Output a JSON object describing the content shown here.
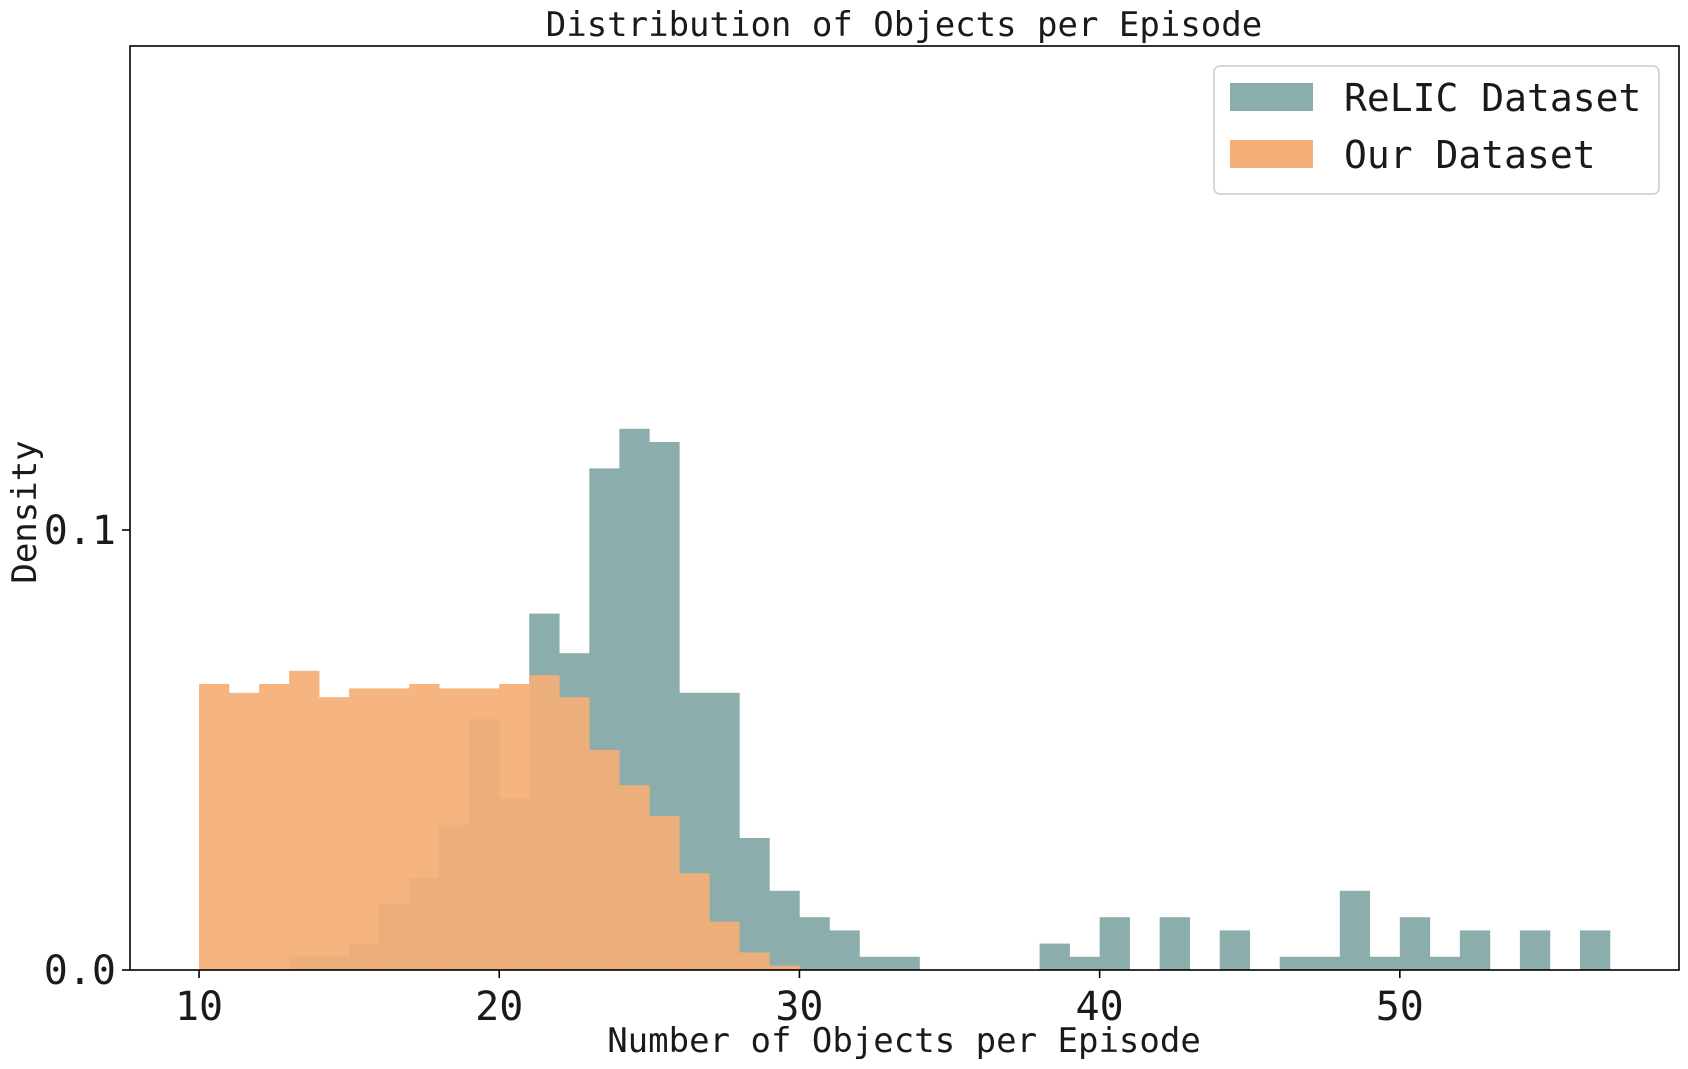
{
  "chart_data": {
    "type": "bar",
    "subtype": "overlapping-histogram",
    "title": "Distribution of Objects per Episode",
    "xlabel": "Number of Objects per Episode",
    "ylabel": "Density",
    "xlim": [
      7.7,
      59.3
    ],
    "ylim": [
      0,
      0.21
    ],
    "xticks": [
      10,
      20,
      30,
      40,
      50
    ],
    "yticks": [
      0.0,
      0.1
    ],
    "ytick_labels": [
      "0.0",
      "0.1"
    ],
    "bin_width": 1,
    "grid": false,
    "legend_position": "top-right",
    "series": [
      {
        "name": "ReLIC Dataset",
        "color": "#8badac",
        "bins": [
          [
            13,
            0.003
          ],
          [
            14,
            0.003
          ],
          [
            15,
            0.006
          ],
          [
            16,
            0.015
          ],
          [
            17,
            0.021
          ],
          [
            18,
            0.033
          ],
          [
            19,
            0.057
          ],
          [
            20,
            0.039
          ],
          [
            21,
            0.081
          ],
          [
            22,
            0.072
          ],
          [
            23,
            0.114
          ],
          [
            24,
            0.123
          ],
          [
            25,
            0.12
          ],
          [
            26,
            0.063
          ],
          [
            27,
            0.063
          ],
          [
            28,
            0.03
          ],
          [
            29,
            0.018
          ],
          [
            30,
            0.012
          ],
          [
            31,
            0.009
          ],
          [
            32,
            0.003
          ],
          [
            33,
            0.003
          ],
          [
            38,
            0.006
          ],
          [
            39,
            0.003
          ],
          [
            40,
            0.012
          ],
          [
            42,
            0.012
          ],
          [
            44,
            0.009
          ],
          [
            46,
            0.003
          ],
          [
            47,
            0.003
          ],
          [
            48,
            0.018
          ],
          [
            49,
            0.003
          ],
          [
            50,
            0.012
          ],
          [
            51,
            0.003
          ],
          [
            52,
            0.009
          ],
          [
            54,
            0.009
          ],
          [
            56,
            0.009
          ]
        ]
      },
      {
        "name": "Our Dataset",
        "color": "#f4ae75",
        "bins": [
          [
            10,
            0.065
          ],
          [
            11,
            0.063
          ],
          [
            12,
            0.065
          ],
          [
            13,
            0.068
          ],
          [
            14,
            0.062
          ],
          [
            15,
            0.064
          ],
          [
            16,
            0.064
          ],
          [
            17,
            0.065
          ],
          [
            18,
            0.064
          ],
          [
            19,
            0.064
          ],
          [
            20,
            0.065
          ],
          [
            21,
            0.067
          ],
          [
            22,
            0.062
          ],
          [
            23,
            0.05
          ],
          [
            24,
            0.042
          ],
          [
            25,
            0.035
          ],
          [
            26,
            0.022
          ],
          [
            27,
            0.011
          ],
          [
            28,
            0.004
          ],
          [
            29,
            0.001
          ]
        ]
      }
    ]
  }
}
